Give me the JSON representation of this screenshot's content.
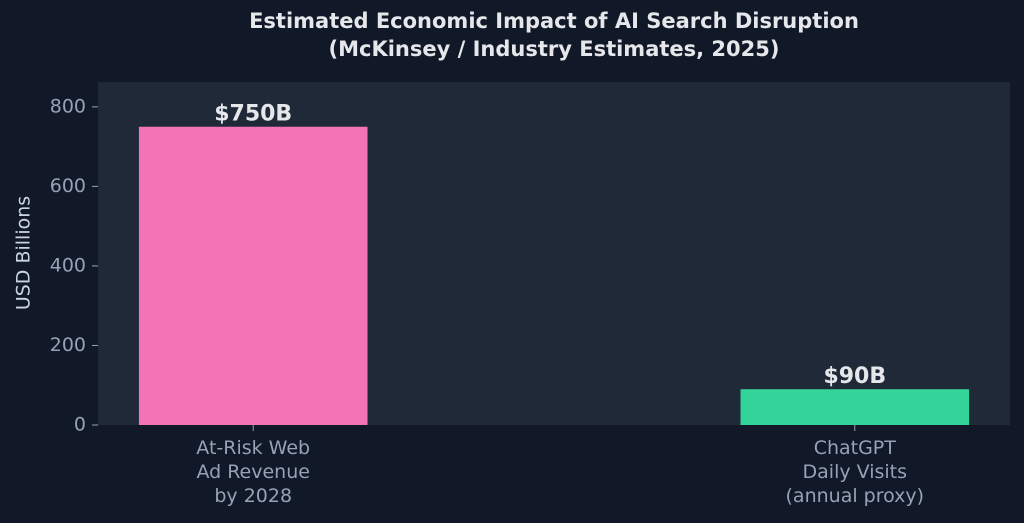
{
  "chart_data": {
    "type": "bar",
    "title": "Estimated Economic Impact of AI Search Disruption\n(McKinsey / Industry Estimates, 2025)",
    "y_label": "USD Billions",
    "categories": [
      "At-Risk Web\nAd Revenue\nby 2028",
      "ChatGPT\nDaily Visits\n(annual proxy)"
    ],
    "values": [
      750,
      90
    ],
    "value_labels": [
      "$750B",
      "$90B"
    ],
    "colors": [
      "#f472b6",
      "#34d399"
    ],
    "ylim": [
      0,
      862.5
    ],
    "yticks": [
      0,
      200,
      400,
      600,
      800
    ],
    "grid": false
  }
}
